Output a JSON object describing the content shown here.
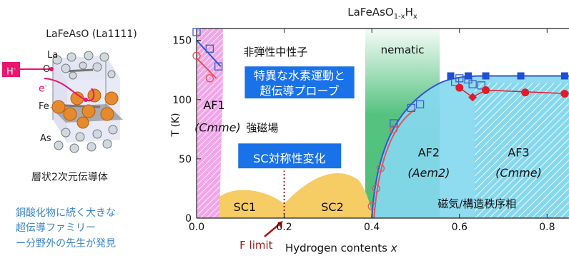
{
  "crystal": {
    "title": "LaFeAsO (La1111)",
    "labels": {
      "la": "La",
      "o": "O",
      "fe": "Fe",
      "as": "As",
      "h": "H",
      "e": "e"
    },
    "caption": "層状2次元伝導体",
    "notes": [
      "銅酸化物に続く大きな",
      "超伝導ファミリー",
      "ー分野外の先生が発見"
    ]
  },
  "chart_data": {
    "type": "scatter",
    "title_parts": {
      "base": "LaFeAsO",
      "sub": "1-x",
      "tail": "H",
      "tail_sub": "x"
    },
    "xlabel": "Hydrogen contents x",
    "ylabel": "T (K)",
    "xlim": [
      0.0,
      0.85
    ],
    "ylim": [
      0,
      160
    ],
    "x_ticks": [
      "0.0",
      "0.2",
      "0.4",
      "0.6",
      "0.8"
    ],
    "y_ticks": [
      "0",
      "50",
      "100",
      "150"
    ],
    "regions": {
      "af1": {
        "label": "AF1",
        "sub": "(Cmme)",
        "color": "#f1a6e8"
      },
      "af2": {
        "label": "AF2",
        "sub": "(Aem2)",
        "color": "#86d8ee"
      },
      "af3": {
        "label": "AF3",
        "sub": "(Cmme)",
        "color": "#86d8ee"
      },
      "sc1": {
        "label": "SC1",
        "color": "#f6cc64"
      },
      "sc2": {
        "label": "SC2",
        "color": "#f6cc64"
      },
      "nematic": {
        "label": "nematic",
        "color": "#39b86b"
      }
    },
    "annotations": {
      "neutron": "非弾性中性子",
      "hydrogen_box": [
        "特異な水素運動と",
        "超伝導プローブ"
      ],
      "strong_field": "強磁場",
      "sc_box": "SC対称性変化",
      "ordered": "磁気/構造秩序相",
      "f_limit": "F limit"
    },
    "f_limit_x": 0.2,
    "series": [
      {
        "marker": "open-square",
        "color": "#3a5fcd",
        "points": [
          [
            0.0,
            157
          ],
          [
            0.03,
            143
          ],
          [
            0.05,
            128
          ],
          [
            0.45,
            80
          ],
          [
            0.49,
            93
          ],
          [
            0.51,
            96
          ],
          [
            0.59,
            115
          ],
          [
            0.6,
            118
          ],
          [
            0.62,
            117
          ],
          [
            0.63,
            113
          ],
          [
            0.65,
            112
          ]
        ]
      },
      {
        "marker": "open-circle",
        "color": "#e2545a",
        "points": [
          [
            0.0,
            137
          ],
          [
            0.03,
            118
          ],
          [
            0.4,
            10
          ],
          [
            0.41,
            25
          ],
          [
            0.42,
            42
          ],
          [
            0.45,
            75
          ]
        ]
      },
      {
        "marker": "filled-square",
        "color": "#1e4fd0",
        "points": [
          [
            0.58,
            120
          ],
          [
            0.62,
            120
          ],
          [
            0.66,
            120
          ],
          [
            0.74,
            120
          ],
          [
            0.84,
            120
          ]
        ]
      },
      {
        "marker": "filled-circle",
        "color": "#e21b2a",
        "points": [
          [
            0.6,
            110
          ],
          [
            0.66,
            108
          ],
          [
            0.75,
            106
          ],
          [
            0.84,
            105
          ]
        ]
      },
      {
        "marker": "filled-diamond",
        "color": "#e21b2a",
        "points": [
          [
            0.63,
            102
          ]
        ]
      }
    ]
  }
}
